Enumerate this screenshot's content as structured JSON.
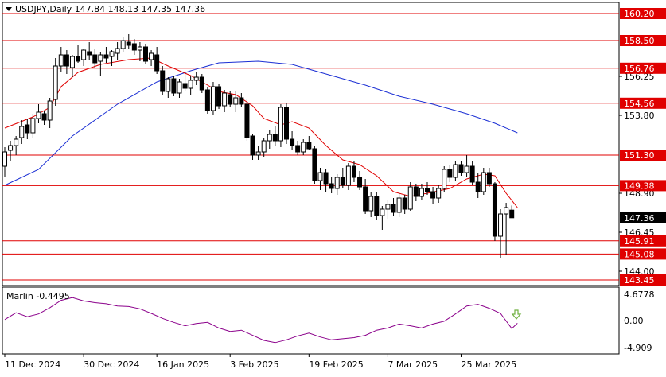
{
  "header": {
    "symbol_line": "USDJPY,Daily  147.84 148.13 147.35 147.36",
    "menu_icon": "triangle-down-icon"
  },
  "indicator": {
    "label": "Marlin -0.4495",
    "scale_top": "4.6778",
    "scale_mid": "0.00",
    "scale_bottom": "-4.909",
    "signal_icon": "arrow-down-outline-icon",
    "signal_color": "#70b040",
    "line_color": "#8b008b"
  },
  "levels": [
    {
      "value": 160.2,
      "label": "160.20"
    },
    {
      "value": 158.5,
      "label": "158.50"
    },
    {
      "value": 156.76,
      "label": "156.76"
    },
    {
      "value": 154.56,
      "label": "154.56"
    },
    {
      "value": 151.3,
      "label": "151.30"
    },
    {
      "value": 149.38,
      "label": "149.38"
    },
    {
      "value": 145.91,
      "label": "145.91"
    },
    {
      "value": 145.08,
      "label": "145.08"
    },
    {
      "value": 143.45,
      "label": "143.45"
    }
  ],
  "price_ticks": [
    {
      "value": 156.25,
      "label": "156.25"
    },
    {
      "value": 153.8,
      "label": "153.80"
    },
    {
      "value": 148.9,
      "label": "148.90"
    },
    {
      "value": 146.45,
      "label": "146.45"
    },
    {
      "value": 144.0,
      "label": "144.00"
    }
  ],
  "current_price": {
    "value": 147.36,
    "label": "147.36"
  },
  "date_labels": [
    "11 Dec 2024",
    "30 Dec 2024",
    "16 Jan 2025",
    "3 Feb 2025",
    "19 Feb 2025",
    "7 Mar 2025",
    "25 Mar 2025"
  ],
  "colors": {
    "level_line": "#e00000",
    "level_box": "#e00000",
    "fast_ma": "#e00000",
    "slow_ma": "#1b2fd4",
    "candle": "#000000",
    "current_box": "#000000"
  },
  "chart_data": {
    "type": "candlestick",
    "title": "USDJPY,Daily",
    "ylim": [
      142.8,
      161.2
    ],
    "candles": [
      [
        150.6,
        151.8,
        149.9,
        151.5
      ],
      [
        151.6,
        152.2,
        150.9,
        151.9
      ],
      [
        151.9,
        152.5,
        151.3,
        152.3
      ],
      [
        152.4,
        153.5,
        152.0,
        153.1
      ],
      [
        153.2,
        153.6,
        152.3,
        152.7
      ],
      [
        152.7,
        153.9,
        152.4,
        153.6
      ],
      [
        153.6,
        154.5,
        153.3,
        154.0
      ],
      [
        153.9,
        154.1,
        153.2,
        153.5
      ],
      [
        153.5,
        154.9,
        153.0,
        154.7
      ],
      [
        154.8,
        157.4,
        154.4,
        156.9
      ],
      [
        156.9,
        158.1,
        156.5,
        157.6
      ],
      [
        157.6,
        157.9,
        156.4,
        156.9
      ],
      [
        156.8,
        157.6,
        156.2,
        157.5
      ],
      [
        157.5,
        158.2,
        157.1,
        157.2
      ],
      [
        157.3,
        158.0,
        156.9,
        157.9
      ],
      [
        157.8,
        158.4,
        157.3,
        157.6
      ],
      [
        157.6,
        158.0,
        156.8,
        157.1
      ],
      [
        157.2,
        157.8,
        156.3,
        157.6
      ],
      [
        157.6,
        158.1,
        157.1,
        157.4
      ],
      [
        157.5,
        157.9,
        156.9,
        157.8
      ],
      [
        157.7,
        158.4,
        157.3,
        158.0
      ],
      [
        158.0,
        158.7,
        157.8,
        158.5
      ],
      [
        158.4,
        158.9,
        158.0,
        158.2
      ],
      [
        158.3,
        158.6,
        157.6,
        157.9
      ],
      [
        157.9,
        158.4,
        157.2,
        158.1
      ],
      [
        158.1,
        158.3,
        157.0,
        157.2
      ],
      [
        157.3,
        157.9,
        156.9,
        157.7
      ],
      [
        157.6,
        158.1,
        156.4,
        156.6
      ],
      [
        156.6,
        156.9,
        155.1,
        155.3
      ],
      [
        155.3,
        156.2,
        154.9,
        156.1
      ],
      [
        156.1,
        156.3,
        155.0,
        155.2
      ],
      [
        155.2,
        156.1,
        154.9,
        155.9
      ],
      [
        155.8,
        156.4,
        155.3,
        155.5
      ],
      [
        155.5,
        156.3,
        155.1,
        156.0
      ],
      [
        156.0,
        156.5,
        155.7,
        156.2
      ],
      [
        156.2,
        156.4,
        155.2,
        155.4
      ],
      [
        155.4,
        155.6,
        153.9,
        154.1
      ],
      [
        154.1,
        155.9,
        153.8,
        155.6
      ],
      [
        155.6,
        155.8,
        154.2,
        154.4
      ],
      [
        154.4,
        155.4,
        154.0,
        155.2
      ],
      [
        155.1,
        155.3,
        154.3,
        154.5
      ],
      [
        154.5,
        155.3,
        154.0,
        154.9
      ],
      [
        154.9,
        155.2,
        154.3,
        154.5
      ],
      [
        154.5,
        154.8,
        152.2,
        152.4
      ],
      [
        152.5,
        152.6,
        151.0,
        151.3
      ],
      [
        151.3,
        151.9,
        151.0,
        151.5
      ],
      [
        151.5,
        152.4,
        151.2,
        152.2
      ],
      [
        152.2,
        152.9,
        151.7,
        152.6
      ],
      [
        152.6,
        153.1,
        151.9,
        152.2
      ],
      [
        152.2,
        154.5,
        151.8,
        154.3
      ],
      [
        154.3,
        154.6,
        152.0,
        152.3
      ],
      [
        152.3,
        152.8,
        151.6,
        151.9
      ],
      [
        151.9,
        152.2,
        151.3,
        151.5
      ],
      [
        151.5,
        152.3,
        151.3,
        152.1
      ],
      [
        152.1,
        152.5,
        151.6,
        151.7
      ],
      [
        151.7,
        151.9,
        149.5,
        149.7
      ],
      [
        149.7,
        150.5,
        149.1,
        150.2
      ],
      [
        150.2,
        150.4,
        149.0,
        149.5
      ],
      [
        149.5,
        149.9,
        148.9,
        149.2
      ],
      [
        149.2,
        150.1,
        148.8,
        149.9
      ],
      [
        149.9,
        150.5,
        149.2,
        149.4
      ],
      [
        149.4,
        150.8,
        149.1,
        150.6
      ],
      [
        150.6,
        150.9,
        149.6,
        149.9
      ],
      [
        149.9,
        150.3,
        149.1,
        149.3
      ],
      [
        149.3,
        149.8,
        147.6,
        147.8
      ],
      [
        147.8,
        149.0,
        147.4,
        148.7
      ],
      [
        148.7,
        149.0,
        147.2,
        147.5
      ],
      [
        147.5,
        148.1,
        146.6,
        147.9
      ],
      [
        147.9,
        148.5,
        147.3,
        148.2
      ],
      [
        148.2,
        148.6,
        147.5,
        147.7
      ],
      [
        147.7,
        148.9,
        147.4,
        148.6
      ],
      [
        148.6,
        148.8,
        147.6,
        147.9
      ],
      [
        147.9,
        149.6,
        147.8,
        149.3
      ],
      [
        149.3,
        149.5,
        148.4,
        148.7
      ],
      [
        148.7,
        149.5,
        148.5,
        149.2
      ],
      [
        149.2,
        149.6,
        148.8,
        149.0
      ],
      [
        149.0,
        149.3,
        148.2,
        148.6
      ],
      [
        148.6,
        149.4,
        148.3,
        149.2
      ],
      [
        149.2,
        150.6,
        149.0,
        150.4
      ],
      [
        150.4,
        150.7,
        149.6,
        149.9
      ],
      [
        149.9,
        150.9,
        149.7,
        150.7
      ],
      [
        150.7,
        150.9,
        150.0,
        150.2
      ],
      [
        150.2,
        151.3,
        149.9,
        150.6
      ],
      [
        150.6,
        150.9,
        149.4,
        149.6
      ],
      [
        149.6,
        150.2,
        148.6,
        149.0
      ],
      [
        149.0,
        150.5,
        148.8,
        150.2
      ],
      [
        150.2,
        150.5,
        149.3,
        149.5
      ],
      [
        149.5,
        149.6,
        145.9,
        146.2
      ],
      [
        146.2,
        147.9,
        144.8,
        147.6
      ],
      [
        147.6,
        148.3,
        145.0,
        148.0
      ],
      [
        147.84,
        148.13,
        147.35,
        147.36
      ]
    ],
    "fast_ma": [
      [
        0,
        153.0
      ],
      [
        5,
        153.7
      ],
      [
        8,
        154.3
      ],
      [
        10,
        155.6
      ],
      [
        13,
        156.5
      ],
      [
        17,
        157.0
      ],
      [
        22,
        157.3
      ],
      [
        26,
        157.4
      ],
      [
        29,
        156.9
      ],
      [
        33,
        156.3
      ],
      [
        36,
        155.7
      ],
      [
        38,
        155.3
      ],
      [
        41,
        155.1
      ],
      [
        44,
        154.4
      ],
      [
        46,
        153.6
      ],
      [
        49,
        153.2
      ],
      [
        51,
        153.4
      ],
      [
        54,
        153.0
      ],
      [
        57,
        151.9
      ],
      [
        60,
        151.0
      ],
      [
        63,
        150.7
      ],
      [
        66,
        150.0
      ],
      [
        69,
        149.0
      ],
      [
        72,
        148.7
      ],
      [
        75,
        148.9
      ],
      [
        79,
        149.2
      ],
      [
        82,
        149.8
      ],
      [
        85,
        150.1
      ],
      [
        87,
        150.0
      ],
      [
        89,
        148.9
      ],
      [
        91,
        148.0
      ]
    ],
    "slow_ma": [
      [
        0,
        149.4
      ],
      [
        6,
        150.4
      ],
      [
        12,
        152.5
      ],
      [
        20,
        154.5
      ],
      [
        27,
        155.9
      ],
      [
        33,
        156.6
      ],
      [
        38,
        157.1
      ],
      [
        45,
        157.2
      ],
      [
        51,
        157.0
      ],
      [
        57,
        156.4
      ],
      [
        64,
        155.7
      ],
      [
        70,
        155.0
      ],
      [
        76,
        154.5
      ],
      [
        82,
        153.9
      ],
      [
        87,
        153.3
      ],
      [
        91,
        152.7
      ]
    ],
    "marlin": [
      [
        0,
        0.2
      ],
      [
        2,
        1.4
      ],
      [
        4,
        0.7
      ],
      [
        6,
        1.2
      ],
      [
        8,
        2.3
      ],
      [
        10,
        3.6
      ],
      [
        12,
        4.1
      ],
      [
        14,
        3.5
      ],
      [
        16,
        3.2
      ],
      [
        18,
        3.0
      ],
      [
        20,
        2.6
      ],
      [
        22,
        2.5
      ],
      [
        24,
        2.1
      ],
      [
        26,
        1.3
      ],
      [
        28,
        0.4
      ],
      [
        30,
        -0.3
      ],
      [
        32,
        -0.9
      ],
      [
        34,
        -0.5
      ],
      [
        36,
        -0.3
      ],
      [
        38,
        -1.3
      ],
      [
        40,
        -1.9
      ],
      [
        42,
        -1.7
      ],
      [
        44,
        -2.6
      ],
      [
        46,
        -3.5
      ],
      [
        48,
        -3.9
      ],
      [
        50,
        -3.4
      ],
      [
        52,
        -2.7
      ],
      [
        54,
        -2.2
      ],
      [
        56,
        -2.9
      ],
      [
        58,
        -3.4
      ],
      [
        60,
        -3.2
      ],
      [
        62,
        -3.0
      ],
      [
        64,
        -2.6
      ],
      [
        66,
        -1.7
      ],
      [
        68,
        -1.3
      ],
      [
        70,
        -0.6
      ],
      [
        72,
        -0.9
      ],
      [
        74,
        -1.3
      ],
      [
        76,
        -0.6
      ],
      [
        78,
        -0.1
      ],
      [
        80,
        1.2
      ],
      [
        82,
        2.6
      ],
      [
        84,
        2.9
      ],
      [
        86,
        2.2
      ],
      [
        88,
        1.3
      ],
      [
        90,
        -1.4
      ],
      [
        91,
        -0.45
      ]
    ]
  }
}
